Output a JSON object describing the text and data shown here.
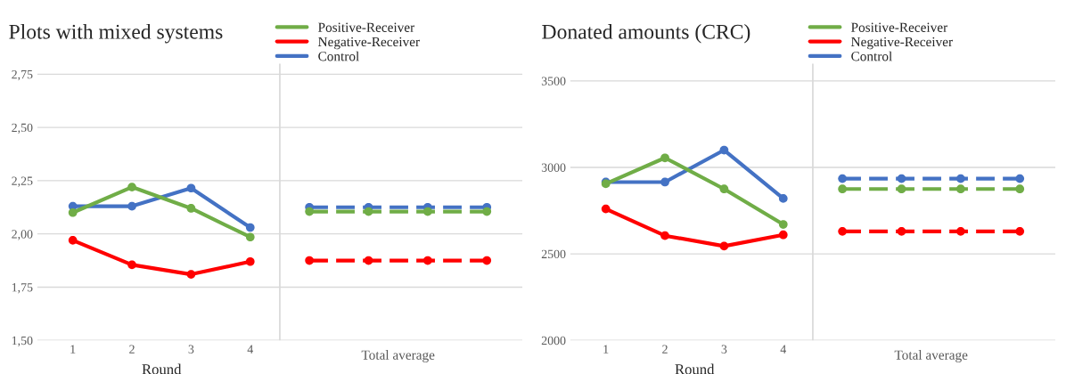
{
  "chart_data": [
    {
      "type": "line",
      "title": "Plots with mixed systems",
      "xlabel": "Round",
      "annotations": [
        "Total average"
      ],
      "categories": [
        "1",
        "2",
        "3",
        "4",
        null,
        null,
        null,
        null
      ],
      "series": [
        {
          "name": "Positive-Receiver",
          "color": "#70ad47",
          "values": [
            2.1,
            2.22,
            2.12,
            1.985,
            null,
            null,
            null,
            null
          ]
        },
        {
          "name": "Negative-Receiver",
          "color": "#ff0000",
          "values": [
            1.97,
            1.855,
            1.81,
            1.87,
            null,
            null,
            null,
            null
          ]
        },
        {
          "name": "Control",
          "color": "#4472c4",
          "values": [
            2.13,
            2.13,
            2.215,
            2.03,
            null,
            null,
            null,
            null
          ]
        },
        {
          "color": "#70ad47",
          "line_style": "dashed",
          "values": [
            null,
            null,
            null,
            null,
            2.105,
            2.105,
            2.105,
            2.105
          ]
        },
        {
          "color": "#ff0000",
          "line_style": "dashed",
          "values": [
            null,
            null,
            null,
            null,
            1.875,
            1.875,
            1.875,
            1.875
          ]
        },
        {
          "color": "#4472c4",
          "line_style": "dashed",
          "values": [
            null,
            null,
            null,
            null,
            2.125,
            2.125,
            2.125,
            2.125
          ]
        }
      ],
      "ylim": [
        1.5,
        2.8
      ],
      "yticks": [
        {
          "value": 1.5,
          "label": "1,50"
        },
        {
          "value": 1.75,
          "label": "1,75"
        },
        {
          "value": 2.0,
          "label": "2,00"
        },
        {
          "value": 2.25,
          "label": "2,25"
        },
        {
          "value": 2.5,
          "label": "2,50"
        },
        {
          "value": 2.75,
          "label": "2,75"
        }
      ],
      "grid": "y",
      "legend": "top right",
      "marker": "circle",
      "line_style": "solid"
    },
    {
      "type": "line",
      "title": "Donated amounts (CRC)",
      "xlabel": "Round",
      "annotations": [
        "Total average"
      ],
      "categories": [
        "1",
        "2",
        "3",
        "4",
        null,
        null,
        null,
        null
      ],
      "series": [
        {
          "name": "Positive-Receiver",
          "color": "#70ad47",
          "values": [
            2905,
            3055,
            2875,
            2670,
            null,
            null,
            null,
            null
          ]
        },
        {
          "name": "Negative-Receiver",
          "color": "#ff0000",
          "values": [
            2760,
            2605,
            2545,
            2610,
            null,
            null,
            null,
            null
          ]
        },
        {
          "name": "Control",
          "color": "#4472c4",
          "values": [
            2915,
            2915,
            3100,
            2820,
            null,
            null,
            null,
            null
          ]
        },
        {
          "color": "#70ad47",
          "line_style": "dashed",
          "values": [
            null,
            null,
            null,
            null,
            2875,
            2875,
            2875,
            2875
          ]
        },
        {
          "color": "#ff0000",
          "line_style": "dashed",
          "values": [
            null,
            null,
            null,
            null,
            2630,
            2630,
            2630,
            2630
          ]
        },
        {
          "color": "#4472c4",
          "line_style": "dashed",
          "values": [
            null,
            null,
            null,
            null,
            2935,
            2935,
            2935,
            2935
          ]
        }
      ],
      "ylim": [
        2000,
        3600
      ],
      "yticks": [
        2000,
        2500,
        3000,
        3500
      ],
      "grid": "y",
      "legend": "top right",
      "marker": "circle",
      "line_style": "solid"
    }
  ]
}
